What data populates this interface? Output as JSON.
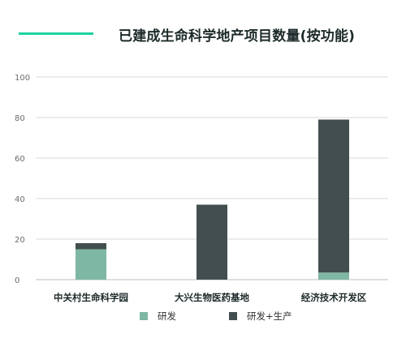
{
  "title": "已建成生命科学地产项目数量(按功能)",
  "colors": {
    "accent": "#1fd2a2",
    "research": "#7fb7a5",
    "research_production": "#434f4f",
    "grid": "#d9d9d9"
  },
  "chart_data": {
    "type": "bar",
    "stacked": true,
    "title": "已建成生命科学地产项目数量(按功能)",
    "categories": [
      "中关村生命科学园",
      "大兴生物医药基地",
      "经济技术开发区"
    ],
    "series": [
      {
        "name": "研发",
        "values": [
          15,
          0,
          3.5
        ]
      },
      {
        "name": "研发+生产",
        "values": [
          3,
          37,
          75.5
        ]
      }
    ],
    "ylim": [
      0,
      100
    ],
    "yticks": [
      0,
      20,
      40,
      60,
      80,
      100
    ],
    "grid": true,
    "legend_position": "bottom"
  }
}
